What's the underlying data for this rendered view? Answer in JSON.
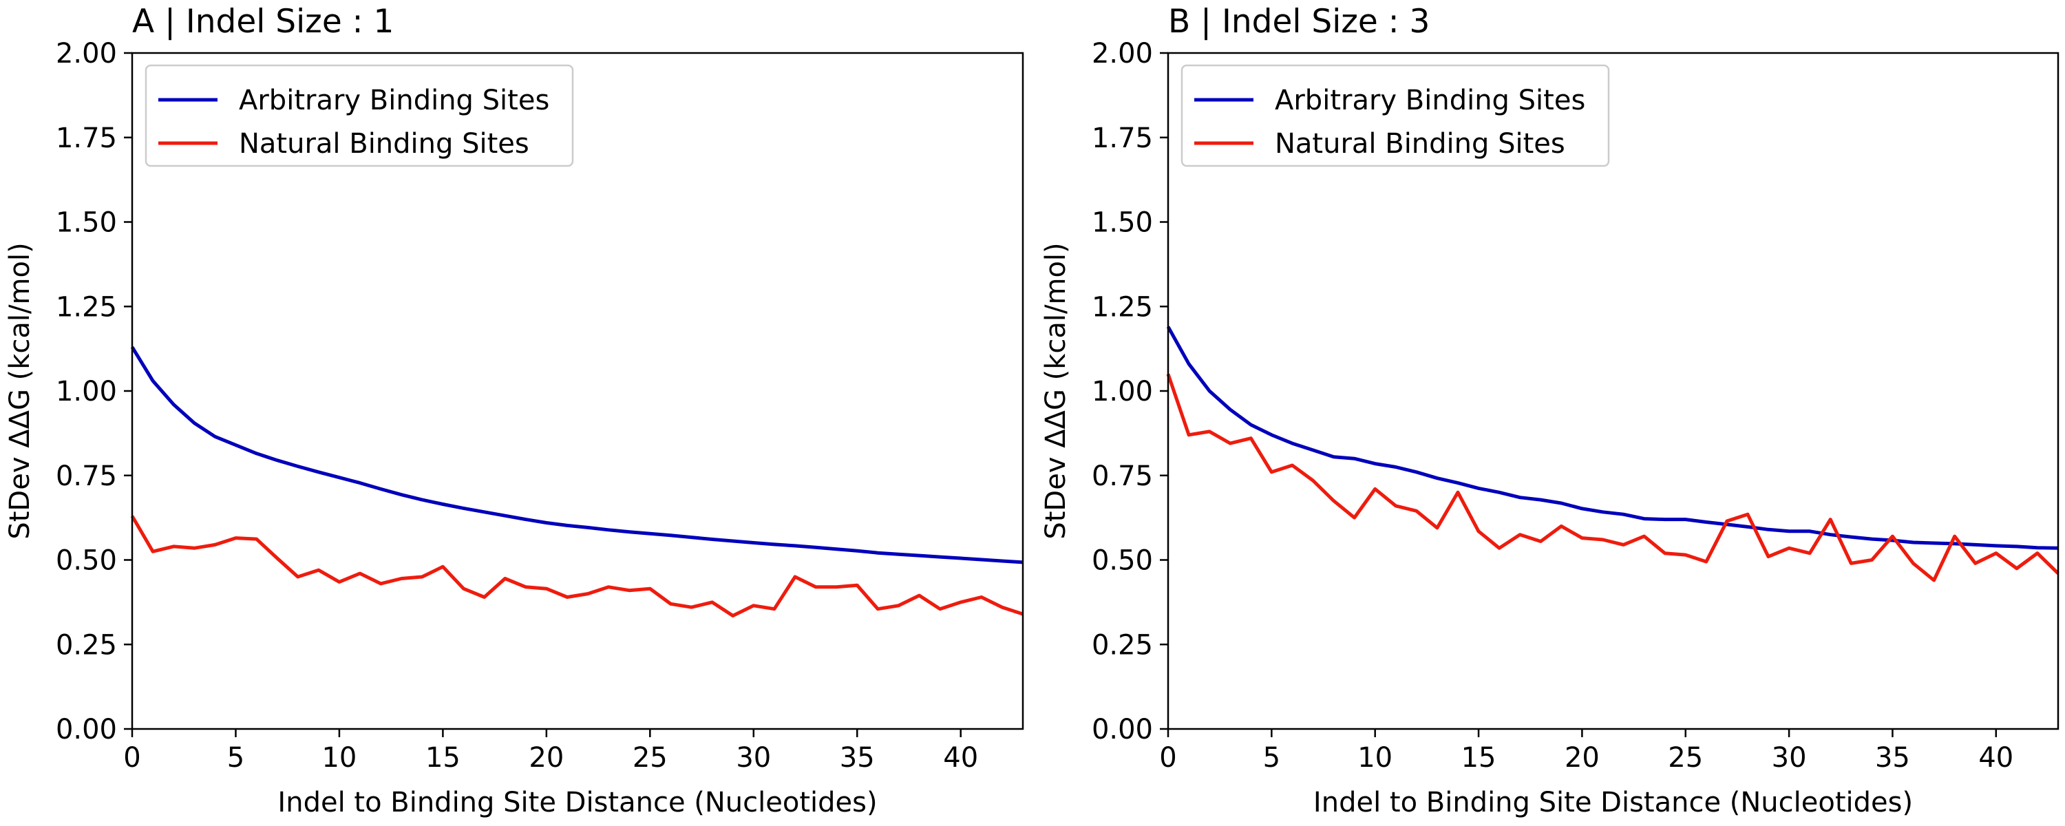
{
  "chart_data": [
    {
      "type": "line",
      "title": "A | Indel Size : 1",
      "xlabel": "Indel to Binding Site Distance (Nucleotides)",
      "ylabel": "StDev ΔΔG (kcal/mol)",
      "xlim": [
        0,
        43
      ],
      "ylim": [
        0,
        2
      ],
      "xticks": [
        "0",
        "5",
        "10",
        "15",
        "20",
        "25",
        "30",
        "35",
        "40"
      ],
      "yticks": [
        "0.00",
        "0.25",
        "0.50",
        "0.75",
        "1.00",
        "1.25",
        "1.50",
        "1.75",
        "2.00"
      ],
      "legend_position": "upper-left",
      "x": [
        0,
        1,
        2,
        3,
        4,
        5,
        6,
        7,
        8,
        9,
        10,
        11,
        12,
        13,
        14,
        15,
        16,
        17,
        18,
        19,
        20,
        21,
        22,
        23,
        24,
        25,
        26,
        27,
        28,
        29,
        30,
        31,
        32,
        33,
        34,
        35,
        36,
        37,
        38,
        39,
        40,
        41,
        42,
        43
      ],
      "series": [
        {
          "name": "Arbitrary Binding Sites",
          "color": "#0000bb",
          "values": [
            1.13,
            1.03,
            0.96,
            0.905,
            0.865,
            0.84,
            0.815,
            0.795,
            0.777,
            0.76,
            0.744,
            0.728,
            0.71,
            0.693,
            0.678,
            0.665,
            0.653,
            0.642,
            0.631,
            0.62,
            0.61,
            0.602,
            0.596,
            0.589,
            0.583,
            0.578,
            0.573,
            0.567,
            0.561,
            0.556,
            0.551,
            0.546,
            0.542,
            0.537,
            0.532,
            0.527,
            0.521,
            0.517,
            0.513,
            0.509,
            0.505,
            0.501,
            0.497,
            0.493
          ]
        },
        {
          "name": "Natural Binding Sites",
          "color": "#ee1c0e",
          "values": [
            0.63,
            0.525,
            0.54,
            0.535,
            0.545,
            0.565,
            0.562,
            0.505,
            0.45,
            0.47,
            0.435,
            0.46,
            0.43,
            0.445,
            0.45,
            0.48,
            0.415,
            0.39,
            0.445,
            0.42,
            0.415,
            0.39,
            0.4,
            0.42,
            0.41,
            0.415,
            0.37,
            0.36,
            0.375,
            0.335,
            0.365,
            0.355,
            0.45,
            0.42,
            0.42,
            0.425,
            0.355,
            0.365,
            0.395,
            0.355,
            0.375,
            0.39,
            0.36,
            0.34
          ]
        }
      ]
    },
    {
      "type": "line",
      "title": "B | Indel Size : 3",
      "xlabel": "Indel to Binding Site Distance (Nucleotides)",
      "ylabel": "StDev ΔΔG (kcal/mol)",
      "xlim": [
        0,
        43
      ],
      "ylim": [
        0,
        2
      ],
      "xticks": [
        "0",
        "5",
        "10",
        "15",
        "20",
        "25",
        "30",
        "35",
        "40"
      ],
      "yticks": [
        "0.00",
        "0.25",
        "0.50",
        "0.75",
        "1.00",
        "1.25",
        "1.50",
        "1.75",
        "2.00"
      ],
      "legend_position": "upper-left",
      "x": [
        0,
        1,
        2,
        3,
        4,
        5,
        6,
        7,
        8,
        9,
        10,
        11,
        12,
        13,
        14,
        15,
        16,
        17,
        18,
        19,
        20,
        21,
        22,
        23,
        24,
        25,
        26,
        27,
        28,
        29,
        30,
        31,
        32,
        33,
        34,
        35,
        36,
        37,
        38,
        39,
        40,
        41,
        42,
        43
      ],
      "series": [
        {
          "name": "Arbitrary Binding Sites",
          "color": "#0000bb",
          "values": [
            1.19,
            1.08,
            1.0,
            0.945,
            0.9,
            0.87,
            0.845,
            0.825,
            0.805,
            0.8,
            0.785,
            0.775,
            0.76,
            0.742,
            0.728,
            0.712,
            0.7,
            0.685,
            0.678,
            0.668,
            0.652,
            0.642,
            0.635,
            0.622,
            0.62,
            0.62,
            0.612,
            0.605,
            0.598,
            0.59,
            0.585,
            0.585,
            0.575,
            0.568,
            0.562,
            0.558,
            0.552,
            0.55,
            0.548,
            0.545,
            0.542,
            0.54,
            0.536,
            0.535
          ]
        },
        {
          "name": "Natural Binding Sites",
          "color": "#ee1c0e",
          "values": [
            1.05,
            0.87,
            0.88,
            0.845,
            0.86,
            0.76,
            0.78,
            0.735,
            0.675,
            0.625,
            0.71,
            0.66,
            0.645,
            0.595,
            0.7,
            0.585,
            0.535,
            0.575,
            0.555,
            0.6,
            0.565,
            0.56,
            0.545,
            0.57,
            0.52,
            0.515,
            0.495,
            0.615,
            0.635,
            0.51,
            0.535,
            0.52,
            0.62,
            0.49,
            0.5,
            0.57,
            0.49,
            0.44,
            0.57,
            0.49,
            0.52,
            0.475,
            0.52,
            0.46
          ]
        }
      ]
    }
  ]
}
